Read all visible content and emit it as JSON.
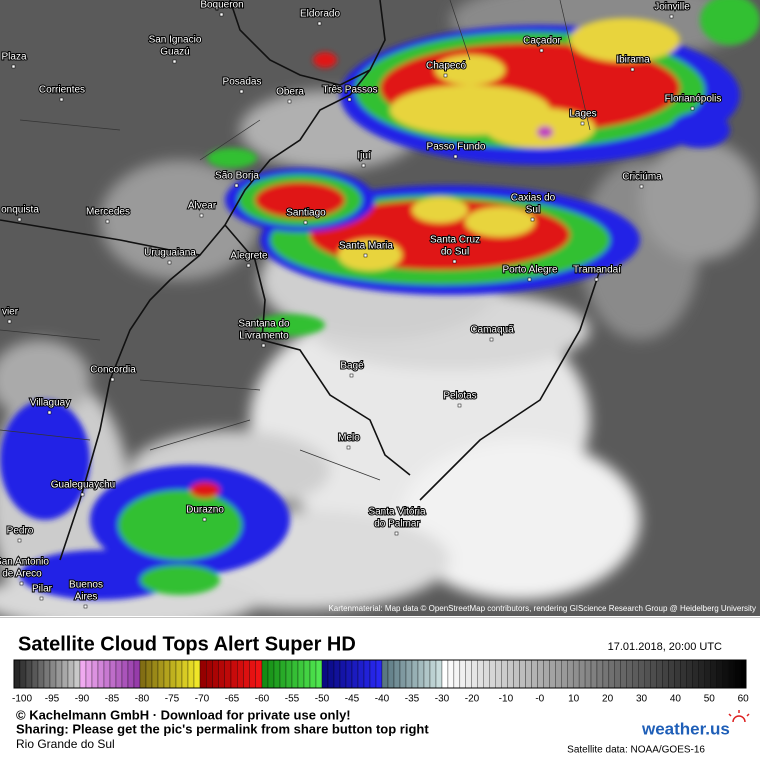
{
  "map": {
    "labels": [
      [
        "Boqueron"
      ],
      [
        "Eldorado"
      ],
      [
        "Joinville"
      ],
      [
        "San Ignacio",
        "Guazú"
      ],
      [
        "Caçador"
      ],
      [
        "Chapecó"
      ],
      [
        "Ibirama"
      ],
      [
        "Plaza"
      ],
      [
        "Posadas"
      ],
      [
        "Obera"
      ],
      [
        "Três Passos"
      ],
      [
        "Corrientes"
      ],
      [
        "Florianópolis"
      ],
      [
        "Lages"
      ],
      [
        "Passo Fundo"
      ],
      [
        "Ijuí"
      ],
      [
        "Criciúma"
      ],
      [
        "São Borja"
      ],
      [
        "Alvear"
      ],
      [
        "Caxias do",
        "Sul"
      ],
      [
        "Mercedes"
      ],
      [
        "Santiago"
      ],
      [
        "onquista"
      ],
      [
        "Santa Maria"
      ],
      [
        "Santa Cruz",
        "do Sul"
      ],
      [
        "Uruguaiana"
      ],
      [
        "Alegrete"
      ],
      [
        "Porto Alegre"
      ],
      [
        "Tramandaí"
      ],
      [
        "vier"
      ],
      [
        "Santana do",
        "Livramento"
      ],
      [
        "Camaquã"
      ],
      [
        "Concordia"
      ],
      [
        "Bagé"
      ],
      [
        "Villaguay"
      ],
      [
        "Pelotas"
      ],
      [
        "Melo"
      ],
      [
        "Gualeguaychu"
      ],
      [
        "Durazno"
      ],
      [
        "Santa Vitória",
        "do Palmar"
      ],
      [
        "Pedro"
      ],
      [
        "San Antonio",
        "de Areco"
      ],
      [
        "Pilar"
      ],
      [
        "Buenos",
        "Aires"
      ]
    ],
    "attribution": "Kartenmaterial: Map data © OpenStreetMap contributors, rendering GIScience Research Group @ Heidelberg University"
  },
  "footer": {
    "title": "Satellite Cloud Tops Alert Super HD",
    "timestamp": "17.01.2018, 20:00 UTC",
    "legend": {
      "labels": [
        "-100",
        "-95",
        "-90",
        "-85",
        "-80",
        "-75",
        "-70",
        "-65",
        "-60",
        "-55",
        "-50",
        "-45",
        "-40",
        "-35",
        "-30",
        "-20",
        "-10",
        "-0",
        "10",
        "20",
        "30",
        "40",
        "50",
        "60"
      ]
    },
    "copyright": "© Kachelmann GmbH · Download for private use only!",
    "sharing": "Sharing: Please get the pic's permalink from share button top right",
    "region": "Rio Grande do Sul",
    "brand": "weather.us",
    "source": "Satellite data: NOAA/GOES-16"
  }
}
